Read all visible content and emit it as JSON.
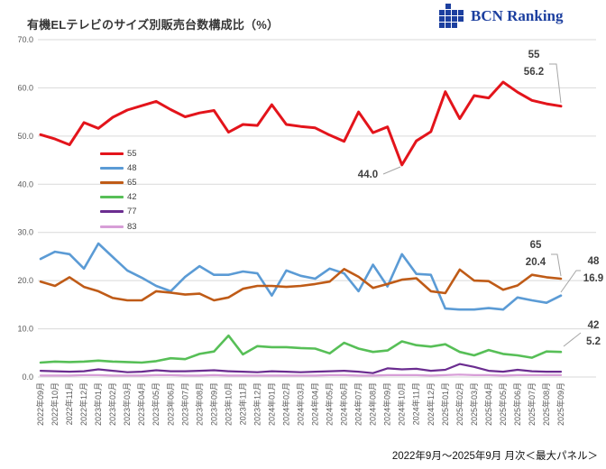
{
  "header": {
    "title": "有機ELテレビのサイズ別販売台数構成比（%）",
    "logo_text": "BCN Ranking"
  },
  "footer": {
    "caption": "2022年9月～2025年9月 月次＜最大パネル＞"
  },
  "chart_data": {
    "type": "line",
    "title": "有機ELテレビのサイズ別販売台数構成比（%）",
    "xlabel": "",
    "ylabel": "",
    "ylim": [
      0,
      70
    ],
    "grid": true,
    "legend_position": "inside-left",
    "yticks": [
      {
        "value": 0,
        "label": "0.0"
      },
      {
        "value": 10,
        "label": "10.0"
      },
      {
        "value": 20,
        "label": "20.0"
      },
      {
        "value": 30,
        "label": "30.0"
      },
      {
        "value": 40,
        "label": "40.0"
      },
      {
        "value": 50,
        "label": "50.0"
      },
      {
        "value": 60,
        "label": "60.0"
      },
      {
        "value": 70,
        "label": "70.0"
      }
    ],
    "x": [
      "2022年09月",
      "2022年10月",
      "2022年11月",
      "2022年12月",
      "2023年01月",
      "2023年02月",
      "2023年03月",
      "2023年04月",
      "2023年05月",
      "2023年06月",
      "2023年07月",
      "2023年08月",
      "2023年09月",
      "2023年10月",
      "2023年11月",
      "2023年12月",
      "2024年01月",
      "2024年02月",
      "2024年03月",
      "2024年04月",
      "2024年05月",
      "2024年06月",
      "2024年07月",
      "2024年08月",
      "2024年09月",
      "2024年10月",
      "2024年11月",
      "2024年12月",
      "2025年01月",
      "2025年02月",
      "2025年03月",
      "2025年04月",
      "2025年05月",
      "2025年06月",
      "2025年07月",
      "2025年08月",
      "2025年09月"
    ],
    "series": [
      {
        "name": "55",
        "color": "#e3141b",
        "width": 3,
        "values": [
          50.3,
          49.4,
          48.2,
          52.8,
          51.6,
          53.9,
          55.4,
          56.3,
          57.2,
          55.5,
          54.0,
          54.8,
          55.3,
          50.8,
          52.4,
          52.2,
          56.5,
          52.4,
          52.0,
          51.7,
          50.2,
          48.9,
          55.0,
          50.7,
          51.9,
          44.0,
          49.0,
          50.9,
          59.2,
          53.6,
          58.4,
          57.9,
          61.2,
          59.1,
          57.4,
          56.7,
          56.2
        ]
      },
      {
        "name": "48",
        "color": "#5b9bd5",
        "width": 2.6,
        "values": [
          24.5,
          26.0,
          25.5,
          22.5,
          27.7,
          24.9,
          22.1,
          20.6,
          18.9,
          17.8,
          20.8,
          23.0,
          21.2,
          21.2,
          21.9,
          21.5,
          16.9,
          22.1,
          21.0,
          20.4,
          22.5,
          21.5,
          17.8,
          23.3,
          18.8,
          25.5,
          21.4,
          21.2,
          14.2,
          14.0,
          14.0,
          14.3,
          14.0,
          16.5,
          15.9,
          15.4,
          16.9
        ]
      },
      {
        "name": "65",
        "color": "#bf5b17",
        "width": 2.6,
        "values": [
          19.8,
          18.9,
          20.7,
          18.7,
          17.8,
          16.4,
          15.9,
          15.9,
          17.8,
          17.5,
          17.1,
          17.3,
          15.9,
          16.5,
          18.3,
          18.9,
          18.9,
          18.7,
          18.9,
          19.3,
          19.8,
          22.4,
          20.8,
          18.5,
          19.3,
          20.2,
          20.5,
          17.8,
          17.4,
          22.3,
          20.0,
          19.9,
          18.1,
          19.0,
          21.2,
          20.7,
          20.4
        ]
      },
      {
        "name": "42",
        "color": "#57bf57",
        "width": 2.6,
        "values": [
          3.0,
          3.2,
          3.1,
          3.2,
          3.4,
          3.2,
          3.1,
          3.0,
          3.3,
          3.9,
          3.7,
          4.8,
          5.3,
          8.6,
          4.7,
          6.4,
          6.2,
          6.2,
          6.0,
          5.9,
          4.9,
          7.1,
          5.9,
          5.2,
          5.5,
          7.4,
          6.6,
          6.3,
          6.8,
          5.2,
          4.5,
          5.6,
          4.8,
          4.5,
          4.0,
          5.3,
          5.2
        ]
      },
      {
        "name": "77",
        "color": "#6b2d90",
        "width": 2.2,
        "values": [
          1.3,
          1.2,
          1.1,
          1.2,
          1.6,
          1.3,
          1.0,
          1.1,
          1.4,
          1.2,
          1.2,
          1.3,
          1.4,
          1.2,
          1.1,
          1.0,
          1.2,
          1.1,
          1.0,
          1.1,
          1.2,
          1.3,
          1.1,
          0.8,
          1.8,
          1.6,
          1.7,
          1.3,
          1.5,
          2.7,
          2.1,
          1.3,
          1.1,
          1.5,
          1.2,
          1.1,
          1.1
        ]
      },
      {
        "name": "83",
        "color": "#d79ed7",
        "width": 2.2,
        "values": [
          0.3,
          0.3,
          0.3,
          0.4,
          0.4,
          0.3,
          0.3,
          0.3,
          0.4,
          0.4,
          0.3,
          0.3,
          0.4,
          0.3,
          0.3,
          0.3,
          0.3,
          0.3,
          0.3,
          0.3,
          0.4,
          0.4,
          0.3,
          0.3,
          0.4,
          0.4,
          0.4,
          0.3,
          0.4,
          0.5,
          0.4,
          0.4,
          0.3,
          0.4,
          0.4,
          0.4,
          0.4
        ]
      }
    ],
    "annotations": [
      {
        "id": "peak-55",
        "lines": [
          "55",
          "56.2"
        ]
      },
      {
        "id": "dip-55",
        "lines": [
          "44.0"
        ]
      },
      {
        "id": "end-65",
        "lines": [
          "65",
          "20.4"
        ]
      },
      {
        "id": "end-48",
        "lines": [
          "48",
          "16.9"
        ]
      },
      {
        "id": "end-42",
        "lines": [
          "42",
          "5.2"
        ]
      }
    ]
  }
}
